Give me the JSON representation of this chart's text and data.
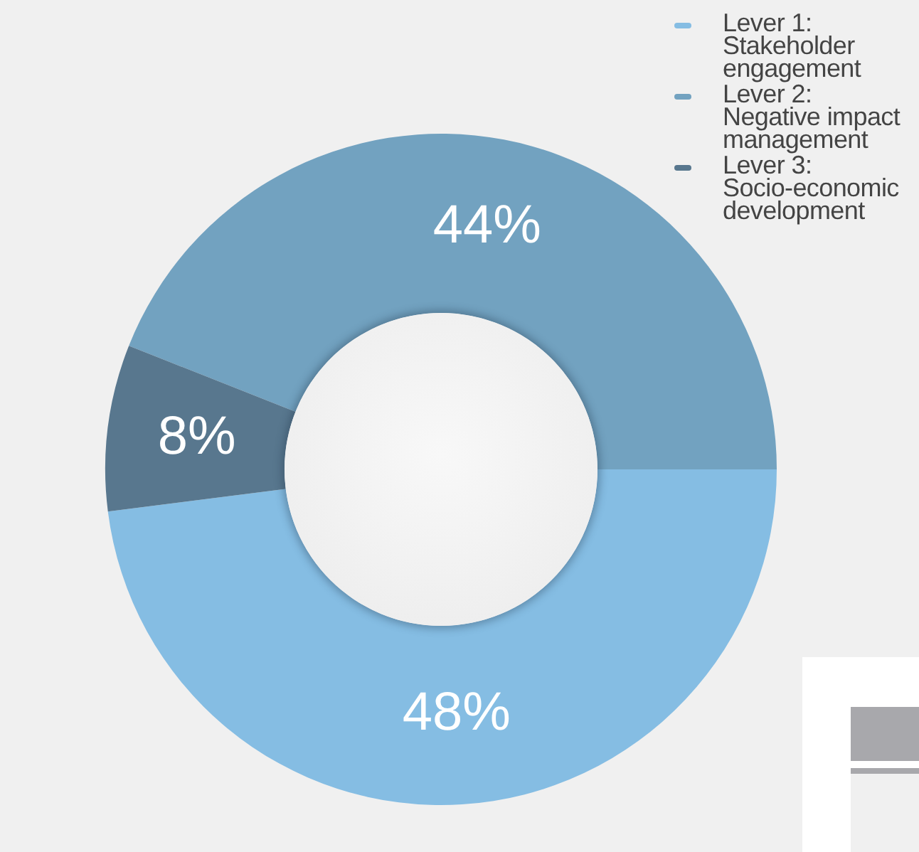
{
  "chart_data": {
    "type": "donut",
    "categories": [
      "Lever 1:\nStakeholder\nengagement",
      "Lever 2:\nNegative impact\nmanagement",
      "Lever 3:\nSocio-economic\ndevelopment"
    ],
    "values": [
      48,
      44,
      8
    ],
    "colors": [
      "#85bde3",
      "#72a2c0",
      "#58778e"
    ],
    "value_labels": [
      "48%",
      "44%",
      "8%"
    ],
    "legend": "top right"
  }
}
